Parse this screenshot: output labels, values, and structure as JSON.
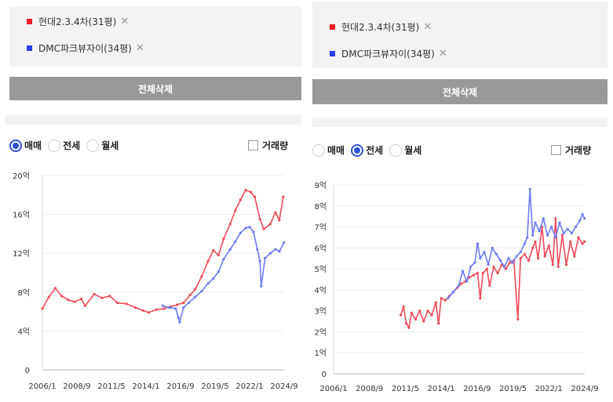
{
  "colors": {
    "red": "#ee1c25",
    "blue": "#2a3df0",
    "red_line": "#ee4a58",
    "blue_line": "#6c7af2",
    "button": "#999999",
    "accent": "#2d52d8"
  },
  "panels": [
    {
      "legend": [
        {
          "name": "현대2.3.4차(31평)",
          "color": "#ee1c25"
        },
        {
          "name": "DMC파크뷰자이(34평)",
          "color": "#2a3df0"
        }
      ],
      "delete_all": "전체삭제",
      "trade_types": [
        {
          "label": "매매",
          "selected": true
        },
        {
          "label": "전세",
          "selected": false
        },
        {
          "label": "월세",
          "selected": false
        }
      ],
      "volume_label": "거래량",
      "chart_data": {
        "type": "line",
        "y_ticks": [
          "20억",
          "16억",
          "12억",
          "8억",
          "4억",
          "0"
        ],
        "ylim": [
          0,
          20
        ],
        "x_ticks": [
          "2006/1",
          "2008/9",
          "2011/5",
          "2014/1",
          "2016/9",
          "2019/5",
          "2022/1",
          "2024/9"
        ],
        "xlim": [
          2006.0,
          2024.67
        ],
        "series": [
          {
            "name": "현대2.3.4차(31평)",
            "color": "#ee4a58",
            "points": [
              [
                2006.0,
                6.3
              ],
              [
                2006.5,
                7.5
              ],
              [
                2007.0,
                8.4
              ],
              [
                2007.5,
                7.6
              ],
              [
                2008.0,
                7.2
              ],
              [
                2008.5,
                7.0
              ],
              [
                2009.0,
                7.3
              ],
              [
                2009.3,
                6.6
              ],
              [
                2010.0,
                7.8
              ],
              [
                2010.6,
                7.4
              ],
              [
                2011.2,
                7.6
              ],
              [
                2011.8,
                6.9
              ],
              [
                2012.5,
                6.8
              ],
              [
                2013.2,
                6.4
              ],
              [
                2013.8,
                6.1
              ],
              [
                2014.2,
                5.9
              ],
              [
                2014.8,
                6.2
              ],
              [
                2015.4,
                6.3
              ],
              [
                2015.9,
                6.5
              ],
              [
                2016.4,
                6.7
              ],
              [
                2016.9,
                6.9
              ],
              [
                2017.4,
                7.7
              ],
              [
                2017.8,
                8.3
              ],
              [
                2018.3,
                9.6
              ],
              [
                2018.8,
                11.2
              ],
              [
                2019.2,
                12.3
              ],
              [
                2019.6,
                11.8
              ],
              [
                2020.0,
                13.5
              ],
              [
                2020.5,
                15.0
              ],
              [
                2020.9,
                16.4
              ],
              [
                2021.3,
                17.5
              ],
              [
                2021.7,
                18.5
              ],
              [
                2022.1,
                18.3
              ],
              [
                2022.4,
                17.8
              ],
              [
                2022.8,
                15.5
              ],
              [
                2023.1,
                14.5
              ],
              [
                2023.6,
                15.0
              ],
              [
                2024.0,
                16.2
              ],
              [
                2024.3,
                15.4
              ],
              [
                2024.6,
                17.8
              ]
            ]
          },
          {
            "name": "DMC파크뷰자이(34평)",
            "color": "#6c7af2",
            "points": [
              [
                2015.3,
                6.6
              ],
              [
                2015.8,
                6.4
              ],
              [
                2016.3,
                6.3
              ],
              [
                2016.5,
                5.4
              ],
              [
                2016.6,
                4.9
              ],
              [
                2016.9,
                6.4
              ],
              [
                2017.3,
                6.9
              ],
              [
                2017.8,
                7.5
              ],
              [
                2018.3,
                8.1
              ],
              [
                2018.8,
                8.9
              ],
              [
                2019.2,
                9.4
              ],
              [
                2019.6,
                10.1
              ],
              [
                2020.0,
                11.4
              ],
              [
                2020.5,
                12.4
              ],
              [
                2020.9,
                13.2
              ],
              [
                2021.3,
                14.1
              ],
              [
                2021.7,
                14.6
              ],
              [
                2022.0,
                14.7
              ],
              [
                2022.3,
                14.2
              ],
              [
                2022.6,
                12.4
              ],
              [
                2022.8,
                11.2
              ],
              [
                2022.9,
                8.6
              ],
              [
                2023.2,
                11.5
              ],
              [
                2023.6,
                12.0
              ],
              [
                2024.0,
                12.4
              ],
              [
                2024.3,
                12.2
              ],
              [
                2024.66,
                13.1
              ]
            ]
          }
        ]
      }
    },
    {
      "legend": [
        {
          "name": "현대2.3.4차(31평)",
          "color": "#ee1c25"
        },
        {
          "name": "DMC파크뷰자이(34평)",
          "color": "#2a3df0"
        }
      ],
      "delete_all": "전체삭제",
      "trade_types": [
        {
          "label": "매매",
          "selected": false
        },
        {
          "label": "전세",
          "selected": true
        },
        {
          "label": "월세",
          "selected": false
        }
      ],
      "volume_label": "거래량",
      "chart_data": {
        "type": "line",
        "y_ticks": [
          "9억",
          "8억",
          "7억",
          "6억",
          "5억",
          "4억",
          "3억",
          "2억",
          "1억",
          "0"
        ],
        "ylim": [
          0,
          9
        ],
        "x_ticks": [
          "2006/1",
          "2008/9",
          "2011/5",
          "2014/1",
          "2016/9",
          "2019/5",
          "2022/1",
          "2024/9"
        ],
        "xlim": [
          2006.0,
          2024.67
        ],
        "series": [
          {
            "name": "현대2.3.4차(31평)",
            "color": "#ee4a58",
            "points": [
              [
                2011.0,
                2.8
              ],
              [
                2011.2,
                3.2
              ],
              [
                2011.4,
                2.4
              ],
              [
                2011.6,
                2.2
              ],
              [
                2011.8,
                2.9
              ],
              [
                2012.1,
                2.6
              ],
              [
                2012.4,
                3.0
              ],
              [
                2012.7,
                2.5
              ],
              [
                2013.0,
                3.0
              ],
              [
                2013.3,
                2.8
              ],
              [
                2013.6,
                3.4
              ],
              [
                2013.8,
                2.4
              ],
              [
                2014.0,
                3.6
              ],
              [
                2014.3,
                3.5
              ],
              [
                2014.6,
                3.7
              ],
              [
                2014.9,
                3.9
              ],
              [
                2015.2,
                4.1
              ],
              [
                2015.5,
                4.3
              ],
              [
                2015.8,
                4.4
              ],
              [
                2016.1,
                4.6
              ],
              [
                2016.4,
                4.7
              ],
              [
                2016.7,
                4.8
              ],
              [
                2016.9,
                3.6
              ],
              [
                2017.1,
                4.8
              ],
              [
                2017.4,
                5.0
              ],
              [
                2017.6,
                4.2
              ],
              [
                2017.9,
                5.1
              ],
              [
                2018.2,
                4.8
              ],
              [
                2018.5,
                5.2
              ],
              [
                2018.8,
                5.0
              ],
              [
                2019.1,
                5.3
              ],
              [
                2019.4,
                5.4
              ],
              [
                2019.7,
                2.6
              ],
              [
                2019.9,
                5.5
              ],
              [
                2020.2,
                5.7
              ],
              [
                2020.5,
                5.4
              ],
              [
                2020.8,
                6.0
              ],
              [
                2021.0,
                6.3
              ],
              [
                2021.2,
                5.5
              ],
              [
                2021.5,
                7.0
              ],
              [
                2021.7,
                5.6
              ],
              [
                2022.0,
                6.1
              ],
              [
                2022.3,
                5.2
              ],
              [
                2022.5,
                7.4
              ],
              [
                2022.7,
                5.1
              ],
              [
                2023.0,
                6.6
              ],
              [
                2023.3,
                5.2
              ],
              [
                2023.6,
                6.3
              ],
              [
                2023.9,
                5.6
              ],
              [
                2024.2,
                6.5
              ],
              [
                2024.5,
                6.2
              ],
              [
                2024.66,
                6.3
              ]
            ]
          },
          {
            "name": "DMC파크뷰자이(34평)",
            "color": "#6c7af2",
            "points": [
              [
                2014.5,
                3.6
              ],
              [
                2014.9,
                3.9
              ],
              [
                2015.3,
                4.2
              ],
              [
                2015.6,
                4.9
              ],
              [
                2015.9,
                4.4
              ],
              [
                2016.2,
                5.1
              ],
              [
                2016.5,
                5.3
              ],
              [
                2016.7,
                6.2
              ],
              [
                2016.9,
                5.5
              ],
              [
                2017.2,
                5.8
              ],
              [
                2017.5,
                5.2
              ],
              [
                2017.8,
                6.0
              ],
              [
                2018.1,
                5.7
              ],
              [
                2018.4,
                5.4
              ],
              [
                2018.7,
                5.1
              ],
              [
                2019.0,
                5.5
              ],
              [
                2019.3,
                5.3
              ],
              [
                2019.6,
                5.6
              ],
              [
                2019.9,
                5.8
              ],
              [
                2020.2,
                6.2
              ],
              [
                2020.4,
                6.5
              ],
              [
                2020.6,
                8.8
              ],
              [
                2020.8,
                6.6
              ],
              [
                2021.0,
                7.2
              ],
              [
                2021.3,
                6.8
              ],
              [
                2021.6,
                7.4
              ],
              [
                2021.9,
                6.6
              ],
              [
                2022.2,
                7.0
              ],
              [
                2022.5,
                6.5
              ],
              [
                2022.8,
                7.2
              ],
              [
                2023.1,
                6.7
              ],
              [
                2023.4,
                6.9
              ],
              [
                2023.7,
                6.7
              ],
              [
                2024.0,
                7.0
              ],
              [
                2024.3,
                7.3
              ],
              [
                2024.5,
                7.6
              ],
              [
                2024.66,
                7.4
              ]
            ]
          }
        ]
      }
    }
  ]
}
